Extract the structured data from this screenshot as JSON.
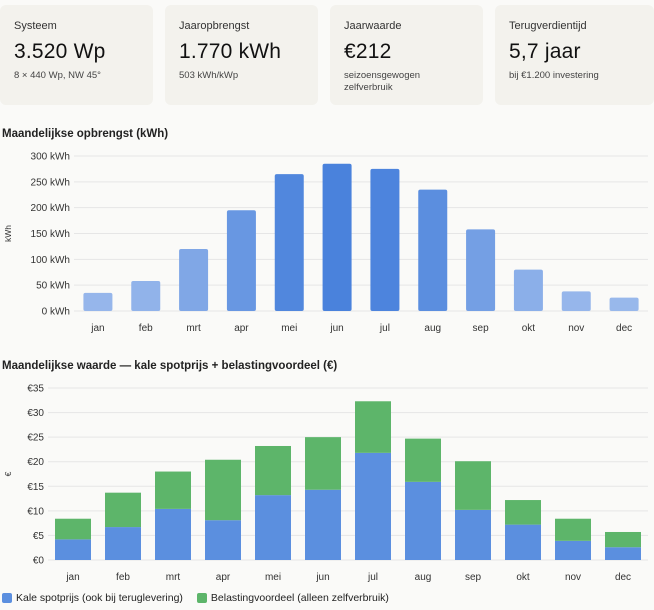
{
  "cards": [
    {
      "label": "Systeem",
      "value": "3.520 Wp",
      "sub": "8 × 440 Wp, NW 45°"
    },
    {
      "label": "Jaaropbrengst",
      "value": "1.770 kWh",
      "sub": "503 kWh/kWp"
    },
    {
      "label": "Jaarwaarde",
      "value": "€212",
      "sub": "seizoensgewogen zelfverbruik"
    },
    {
      "label": "Terugverdientijd",
      "value": "5,7 jaar",
      "sub": "bij €1.200 investering"
    }
  ],
  "colors": {
    "bar_light": "#9dbbec",
    "bar_dark": "#4a82dc",
    "spot": "#5b8fdf",
    "tax": "#5db56a",
    "grid": "#e6e6e6",
    "axis_text": "#333333"
  },
  "chart_data": [
    {
      "type": "bar",
      "title": "Maandelijkse opbrengst (kWh)",
      "ylabel": "kWh",
      "categories": [
        "jan",
        "feb",
        "mrt",
        "apr",
        "mei",
        "jun",
        "jul",
        "aug",
        "sep",
        "okt",
        "nov",
        "dec"
      ],
      "values": [
        35,
        58,
        120,
        195,
        265,
        285,
        275,
        235,
        158,
        80,
        38,
        26
      ],
      "yticks": [
        "0 kWh",
        "50 kWh",
        "100 kWh",
        "150 kWh",
        "200 kWh",
        "250 kWh",
        "300 kWh"
      ],
      "ylim": [
        0,
        300
      ],
      "grid": true
    },
    {
      "type": "bar",
      "stacked": true,
      "title": "Maandelijkse waarde — kale spotprijs + belastingvoordeel (€)",
      "ylabel": "€",
      "categories": [
        "jan",
        "feb",
        "mrt",
        "apr",
        "mei",
        "jun",
        "jul",
        "aug",
        "sep",
        "okt",
        "nov",
        "dec"
      ],
      "series": [
        {
          "name": "Kale spotprijs (ook bij teruglevering)",
          "values": [
            4.2,
            6.7,
            10.4,
            8.1,
            13.2,
            14.3,
            21.8,
            15.9,
            10.2,
            7.2,
            3.9,
            2.6
          ]
        },
        {
          "name": "Belastingvoordeel (alleen zelfverbruik)",
          "values": [
            4.2,
            7.0,
            7.6,
            12.3,
            10.0,
            10.7,
            10.5,
            8.8,
            9.9,
            5.0,
            4.5,
            3.1
          ]
        }
      ],
      "yticks": [
        "€0",
        "€5",
        "€10",
        "€15",
        "€20",
        "€25",
        "€30",
        "€35"
      ],
      "ylim": [
        0,
        35
      ],
      "grid": true,
      "legend": "bottom-left"
    }
  ]
}
